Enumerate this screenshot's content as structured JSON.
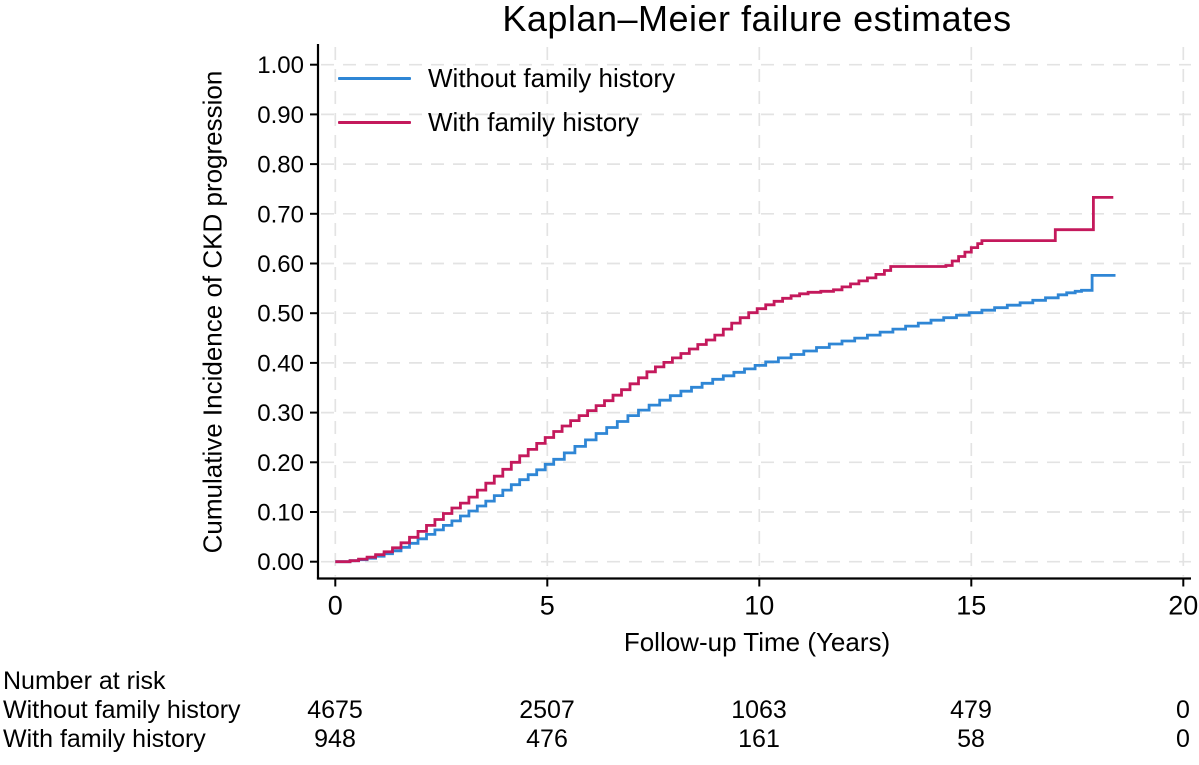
{
  "title": "Kaplan–Meier failure estimates",
  "chart_data": {
    "type": "line",
    "subtype": "kaplan-meier-failure-step",
    "title": "Kaplan–Meier failure estimates",
    "xlabel": "Follow-up Time (Years)",
    "ylabel": "Cumulative Incidence of CKD progression",
    "xlim": [
      0,
      20
    ],
    "ylim": [
      0,
      1
    ],
    "x_ticks": [
      0,
      5,
      10,
      15,
      20
    ],
    "y_tick_labels": [
      "0.00",
      "0.10",
      "0.20",
      "0.30",
      "0.40",
      "0.50",
      "0.60",
      "0.70",
      "0.80",
      "0.90",
      "1.00"
    ],
    "grid": "dashed light-gray horizontal and vertical gridlines at major ticks",
    "legend_position": "top-left inside plot area",
    "series": [
      {
        "name": "Without family history",
        "color": "#2F86D5",
        "points": [
          [
            0,
            0
          ],
          [
            0.35,
            0.002
          ],
          [
            0.55,
            0.004
          ],
          [
            0.75,
            0.007
          ],
          [
            0.95,
            0.011
          ],
          [
            1.15,
            0.016
          ],
          [
            1.35,
            0.022
          ],
          [
            1.55,
            0.029
          ],
          [
            1.75,
            0.037
          ],
          [
            1.95,
            0.046
          ],
          [
            2.15,
            0.055
          ],
          [
            2.35,
            0.064
          ],
          [
            2.55,
            0.073
          ],
          [
            2.75,
            0.082
          ],
          [
            2.95,
            0.092
          ],
          [
            3.15,
            0.102
          ],
          [
            3.35,
            0.112
          ],
          [
            3.55,
            0.122
          ],
          [
            3.75,
            0.133
          ],
          [
            3.95,
            0.144
          ],
          [
            4.15,
            0.155
          ],
          [
            4.35,
            0.165
          ],
          [
            4.55,
            0.175
          ],
          [
            4.75,
            0.185
          ],
          [
            4.95,
            0.196
          ],
          [
            5.15,
            0.206
          ],
          [
            5.4,
            0.219
          ],
          [
            5.65,
            0.232
          ],
          [
            5.9,
            0.245
          ],
          [
            6.15,
            0.258
          ],
          [
            6.4,
            0.27
          ],
          [
            6.65,
            0.282
          ],
          [
            6.9,
            0.294
          ],
          [
            7.15,
            0.305
          ],
          [
            7.4,
            0.315
          ],
          [
            7.65,
            0.325
          ],
          [
            7.9,
            0.334
          ],
          [
            8.15,
            0.343
          ],
          [
            8.4,
            0.351
          ],
          [
            8.65,
            0.359
          ],
          [
            8.9,
            0.367
          ],
          [
            9.15,
            0.374
          ],
          [
            9.4,
            0.381
          ],
          [
            9.65,
            0.388
          ],
          [
            9.9,
            0.395
          ],
          [
            10.15,
            0.402
          ],
          [
            10.45,
            0.41
          ],
          [
            10.75,
            0.417
          ],
          [
            11.05,
            0.424
          ],
          [
            11.35,
            0.431
          ],
          [
            11.65,
            0.438
          ],
          [
            11.95,
            0.444
          ],
          [
            12.25,
            0.45
          ],
          [
            12.55,
            0.456
          ],
          [
            12.85,
            0.462
          ],
          [
            13.15,
            0.468
          ],
          [
            13.45,
            0.474
          ],
          [
            13.75,
            0.48
          ],
          [
            14.05,
            0.486
          ],
          [
            14.35,
            0.491
          ],
          [
            14.65,
            0.496
          ],
          [
            14.95,
            0.501
          ],
          [
            15.25,
            0.506
          ],
          [
            15.55,
            0.511
          ],
          [
            15.85,
            0.516
          ],
          [
            16.15,
            0.521
          ],
          [
            16.45,
            0.526
          ],
          [
            16.75,
            0.531
          ],
          [
            17.05,
            0.537
          ],
          [
            17.25,
            0.541
          ],
          [
            17.45,
            0.544
          ],
          [
            17.6,
            0.546
          ],
          [
            17.85,
            0.576
          ],
          [
            18.4,
            0.576
          ]
        ]
      },
      {
        "name": "With family history",
        "color": "#C4195C",
        "points": [
          [
            0,
            0
          ],
          [
            0.35,
            0.002
          ],
          [
            0.55,
            0.005
          ],
          [
            0.75,
            0.009
          ],
          [
            0.95,
            0.014
          ],
          [
            1.15,
            0.02
          ],
          [
            1.35,
            0.028
          ],
          [
            1.55,
            0.038
          ],
          [
            1.75,
            0.049
          ],
          [
            1.95,
            0.061
          ],
          [
            2.15,
            0.073
          ],
          [
            2.35,
            0.085
          ],
          [
            2.55,
            0.097
          ],
          [
            2.75,
            0.108
          ],
          [
            2.95,
            0.118
          ],
          [
            3.15,
            0.13
          ],
          [
            3.35,
            0.144
          ],
          [
            3.55,
            0.158
          ],
          [
            3.75,
            0.172
          ],
          [
            3.95,
            0.186
          ],
          [
            4.15,
            0.2
          ],
          [
            4.35,
            0.213
          ],
          [
            4.55,
            0.226
          ],
          [
            4.75,
            0.238
          ],
          [
            4.95,
            0.25
          ],
          [
            5.15,
            0.262
          ],
          [
            5.35,
            0.273
          ],
          [
            5.55,
            0.284
          ],
          [
            5.75,
            0.294
          ],
          [
            5.95,
            0.304
          ],
          [
            6.15,
            0.314
          ],
          [
            6.35,
            0.324
          ],
          [
            6.55,
            0.335
          ],
          [
            6.75,
            0.346
          ],
          [
            6.95,
            0.358
          ],
          [
            7.15,
            0.37
          ],
          [
            7.35,
            0.382
          ],
          [
            7.55,
            0.392
          ],
          [
            7.75,
            0.401
          ],
          [
            7.95,
            0.41
          ],
          [
            8.15,
            0.419
          ],
          [
            8.35,
            0.428
          ],
          [
            8.55,
            0.437
          ],
          [
            8.75,
            0.446
          ],
          [
            8.95,
            0.456
          ],
          [
            9.15,
            0.468
          ],
          [
            9.35,
            0.48
          ],
          [
            9.55,
            0.491
          ],
          [
            9.75,
            0.501
          ],
          [
            9.95,
            0.509
          ],
          [
            10.15,
            0.517
          ],
          [
            10.35,
            0.524
          ],
          [
            10.55,
            0.53
          ],
          [
            10.75,
            0.535
          ],
          [
            10.95,
            0.539
          ],
          [
            11.15,
            0.542
          ],
          [
            11.45,
            0.544
          ],
          [
            11.75,
            0.547
          ],
          [
            11.95,
            0.553
          ],
          [
            12.15,
            0.559
          ],
          [
            12.35,
            0.565
          ],
          [
            12.55,
            0.571
          ],
          [
            12.75,
            0.578
          ],
          [
            12.95,
            0.586
          ],
          [
            13.1,
            0.594
          ],
          [
            14.4,
            0.596
          ],
          [
            14.55,
            0.605
          ],
          [
            14.7,
            0.614
          ],
          [
            14.85,
            0.623
          ],
          [
            15.0,
            0.632
          ],
          [
            15.15,
            0.64
          ],
          [
            15.25,
            0.646
          ],
          [
            16.9,
            0.646
          ],
          [
            16.98,
            0.668
          ],
          [
            17.8,
            0.668
          ],
          [
            17.88,
            0.733
          ],
          [
            18.35,
            0.733
          ]
        ]
      }
    ]
  },
  "risk_table": {
    "heading": "Number at risk",
    "time_points": [
      0,
      5,
      10,
      15,
      20
    ],
    "rows": [
      {
        "label": "Without family history",
        "counts": [
          "4675",
          "2507",
          "1063",
          "479",
          "0"
        ]
      },
      {
        "label": "With family history",
        "counts": [
          "948",
          "476",
          "161",
          "58",
          "0"
        ]
      }
    ]
  },
  "colors": {
    "without_family_history": "#2F86D5",
    "with_family_history": "#C4195C",
    "gridline": "#e3e3e3",
    "axis": "#000000",
    "background": "#ffffff",
    "text": "#000000"
  }
}
